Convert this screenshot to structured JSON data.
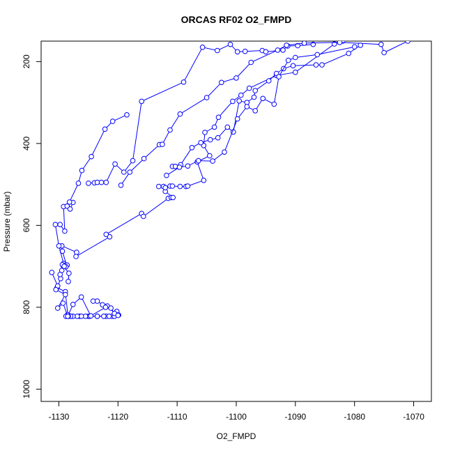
{
  "chart_data": {
    "type": "scatter",
    "title": "ORCAS RF02 O2_FMPD",
    "xlabel": "O2_FMPD",
    "ylabel": "Pressure (mbar)",
    "xlim": [
      -1133,
      -1067
    ],
    "ylim": [
      1030,
      150
    ],
    "y_reversed": true,
    "x_ticks": [
      -1130,
      -1120,
      -1110,
      -1100,
      -1090,
      -1080,
      -1070
    ],
    "y_ticks": [
      200,
      400,
      600,
      800,
      1000
    ],
    "marker": "open-circle",
    "line": true,
    "color": "#0000ff",
    "grid": false,
    "series": [
      {
        "values": [
          [
            -1119.9,
            819
          ],
          [
            -1120.2,
            810
          ],
          [
            -1121,
            822
          ],
          [
            -1122,
            822
          ],
          [
            -1123.5,
            822
          ],
          [
            -1125,
            822
          ],
          [
            -1126.5,
            822
          ],
          [
            -1128,
            822
          ],
          [
            -1128.5,
            818
          ],
          [
            -1128.9,
            762
          ],
          [
            -1130.3,
            752
          ],
          [
            -1129.7,
            730
          ],
          [
            -1129.8,
            720
          ],
          [
            -1129.5,
            710
          ],
          [
            -1128.8,
            700
          ],
          [
            -1128.9,
            697
          ],
          [
            -1129.2,
            697
          ],
          [
            -1129.0,
            698
          ],
          [
            -1128.7,
            697
          ],
          [
            -1129.4,
            663
          ],
          [
            -1129.5,
            650
          ],
          [
            -1127.0,
            666
          ],
          [
            -1127.1,
            676
          ],
          [
            -1121.4,
            628
          ],
          [
            -1122.0,
            622
          ],
          [
            -1116.0,
            571
          ],
          [
            -1115.7,
            578
          ],
          [
            -1111.5,
            534
          ],
          [
            -1111.0,
            532
          ],
          [
            -1110.7,
            532
          ],
          [
            -1112.0,
            517
          ],
          [
            -1112.3,
            505
          ],
          [
            -1113.1,
            505
          ],
          [
            -1112.0,
            508
          ],
          [
            -1111.2,
            504
          ],
          [
            -1110.8,
            504
          ],
          [
            -1109.5,
            505
          ],
          [
            -1108.5,
            505
          ],
          [
            -1108.2,
            504
          ],
          [
            -1105.5,
            490
          ],
          [
            -1106.6,
            445
          ],
          [
            -1104.5,
            430
          ],
          [
            -1105.5,
            405
          ],
          [
            -1105.3,
            373
          ],
          [
            -1103.7,
            360
          ],
          [
            -1103.0,
            336
          ],
          [
            -1100.6,
            297
          ],
          [
            -1099.2,
            282
          ],
          [
            -1097.8,
            265
          ],
          [
            -1093.2,
            234
          ],
          [
            -1090.0,
            226
          ],
          [
            -1083.4,
            157
          ],
          [
            -1082.0,
            150
          ]
        ]
      },
      {
        "values": [
          [
            -1129,
            697
          ],
          [
            -1129.2,
            693
          ],
          [
            -1130.0,
            650
          ],
          [
            -1130.6,
            598
          ],
          [
            -1129.8,
            598
          ],
          [
            -1129.0,
            614
          ],
          [
            -1129.2,
            554
          ],
          [
            -1128.6,
            553
          ],
          [
            -1128.1,
            560
          ],
          [
            -1127.6,
            544
          ],
          [
            -1128.2,
            543
          ],
          [
            -1126.7,
            497
          ],
          [
            -1126.1,
            466
          ],
          [
            -1124.5,
            432
          ],
          [
            -1122.2,
            365
          ],
          [
            -1120.9,
            346
          ],
          [
            -1118.5,
            330
          ]
        ]
      },
      {
        "values": [
          [
            -1125,
            497
          ],
          [
            -1124,
            496
          ],
          [
            -1123.5,
            495
          ],
          [
            -1122.8,
            495
          ],
          [
            -1122.0,
            495
          ],
          [
            -1120.5,
            450
          ],
          [
            -1119,
            470
          ],
          [
            -1117.5,
            442
          ],
          [
            -1116,
            297
          ],
          [
            -1108.9,
            250
          ],
          [
            -1105.7,
            165
          ],
          [
            -1103.2,
            173
          ],
          [
            -1101.0,
            158
          ],
          [
            -1099.8,
            176
          ],
          [
            -1098.5,
            175
          ],
          [
            -1095.6,
            173
          ],
          [
            -1095.0,
            176
          ],
          [
            -1092.1,
            172
          ],
          [
            -1091.3,
            162
          ],
          [
            -1089.6,
            161
          ],
          [
            -1087.0,
            158
          ]
        ]
      },
      {
        "values": [
          [
            -1119.5,
            502
          ],
          [
            -1118.0,
            470
          ],
          [
            -1115.6,
            437
          ],
          [
            -1113.0,
            403
          ],
          [
            -1112.5,
            402
          ],
          [
            -1111.2,
            367
          ],
          [
            -1109.5,
            328
          ],
          [
            -1105.0,
            288
          ],
          [
            -1102.5,
            251
          ],
          [
            -1100.0,
            240
          ],
          [
            -1097.5,
            202
          ],
          [
            -1093.0,
            172
          ],
          [
            -1091.5,
            160
          ],
          [
            -1088.5,
            155
          ],
          [
            -1082.5,
            153
          ],
          [
            -1075.5,
            158
          ],
          [
            -1075.0,
            178
          ],
          [
            -1071.0,
            150
          ]
        ]
      },
      {
        "values": [
          [
            -1110.8,
            456
          ],
          [
            -1110.3,
            456
          ],
          [
            -1109.4,
            452
          ],
          [
            -1107.5,
            410
          ],
          [
            -1106.0,
            398
          ],
          [
            -1104.4,
            391
          ],
          [
            -1103.1,
            386
          ],
          [
            -1101.5,
            360
          ],
          [
            -1100.5,
            372
          ],
          [
            -1099.5,
            296
          ],
          [
            -1098.2,
            300
          ],
          [
            -1097.0,
            287
          ],
          [
            -1096.8,
            271
          ],
          [
            -1094.5,
            247
          ],
          [
            -1093.2,
            229
          ],
          [
            -1092.0,
            217
          ],
          [
            -1090.4,
            210
          ],
          [
            -1086.5,
            208
          ],
          [
            -1085.5,
            208
          ],
          [
            -1081.0,
            180
          ],
          [
            -1079.0,
            160
          ]
        ]
      },
      {
        "values": [
          [
            -1111.8,
            478
          ],
          [
            -1109.6,
            458
          ],
          [
            -1108.2,
            455
          ],
          [
            -1106.4,
            442
          ],
          [
            -1104.0,
            443
          ],
          [
            -1102.0,
            421
          ],
          [
            -1099.8,
            340
          ],
          [
            -1098.2,
            310
          ],
          [
            -1096.8,
            320
          ],
          [
            -1095.5,
            290
          ],
          [
            -1093.6,
            304
          ],
          [
            -1092.8,
            237
          ],
          [
            -1091.2,
            197
          ],
          [
            -1090.0,
            190
          ],
          [
            -1086.3,
            183
          ],
          [
            -1080.0,
            164
          ]
        ]
      },
      {
        "values": [
          [
            -1124.2,
            785
          ],
          [
            -1123.5,
            785
          ],
          [
            -1122.6,
            794
          ],
          [
            -1121.8,
            797
          ],
          [
            -1120.3,
            818
          ],
          [
            -1120.6,
            822
          ],
          [
            -1121.5,
            822
          ],
          [
            -1122.4,
            822
          ],
          [
            -1123.5,
            822
          ],
          [
            -1124.8,
            822
          ],
          [
            -1125.5,
            822
          ],
          [
            -1126.2,
            822
          ],
          [
            -1126.9,
            822
          ],
          [
            -1127.6,
            822
          ],
          [
            -1128.0,
            822
          ],
          [
            -1128.4,
            822
          ],
          [
            -1128.8,
            822
          ]
        ]
      },
      {
        "values": [
          [
            -1131.2,
            715
          ],
          [
            -1130.2,
            748
          ],
          [
            -1130.5,
            757
          ],
          [
            -1128.9,
            769
          ],
          [
            -1130.2,
            802
          ],
          [
            -1129.3,
            790
          ],
          [
            -1128.5,
            822
          ],
          [
            -1127.6,
            793
          ],
          [
            -1126.2,
            775
          ],
          [
            -1124.6,
            821
          ],
          [
            -1122.1,
            800
          ],
          [
            -1121.2,
            802
          ],
          [
            -1120.6,
            815
          ],
          [
            -1120.0,
            820
          ]
        ]
      },
      {
        "values": [
          [
            -1128.4,
            737
          ],
          [
            -1128.3,
            717
          ],
          [
            -1129.2,
            700
          ],
          [
            -1129.4,
            696
          ],
          [
            -1128.9,
            698
          ],
          [
            -1128.6,
            697
          ],
          [
            -1128.8,
            701
          ],
          [
            -1129.1,
            700
          ]
        ]
      }
    ]
  }
}
